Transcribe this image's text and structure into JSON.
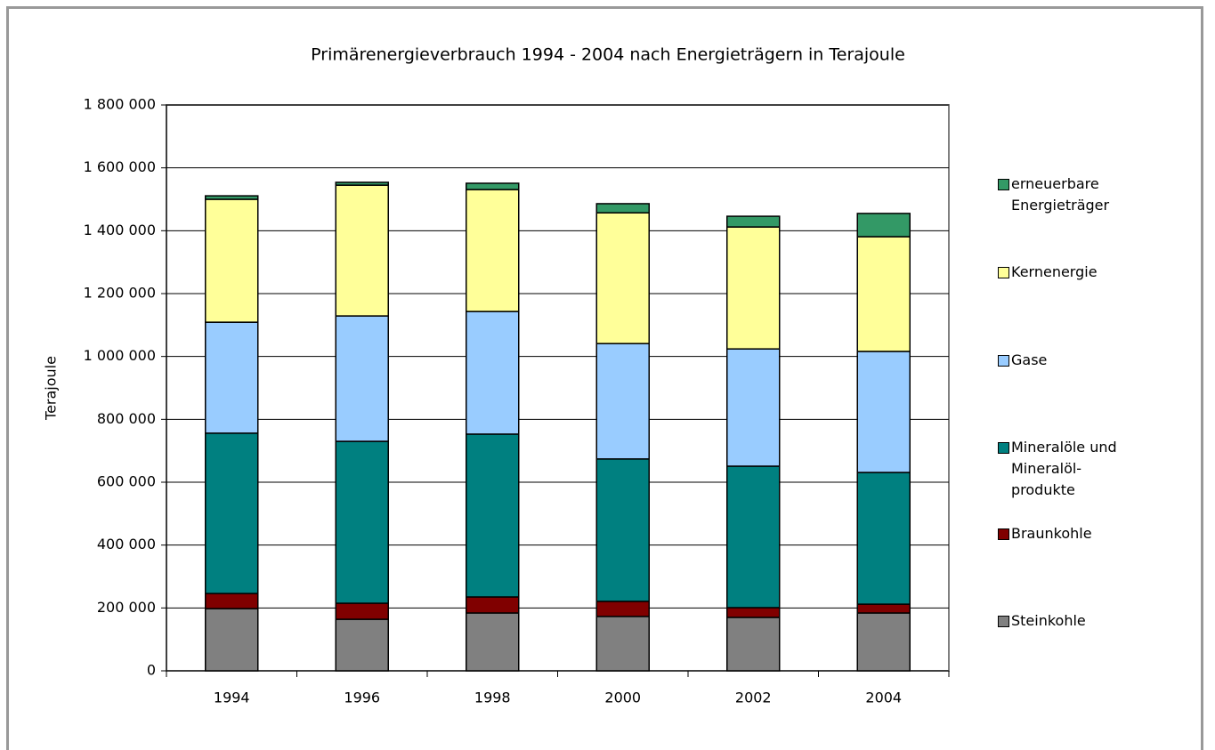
{
  "chart_data": {
    "type": "bar",
    "stacked": true,
    "title": "Primärenergieverbrauch 1994 - 2004 nach Energieträgern in Terajoule",
    "y_label": "Terajoule",
    "categories": [
      "1994",
      "1996",
      "1998",
      "2000",
      "2002",
      "2004"
    ],
    "series": [
      {
        "name": "Steinkohle",
        "color": "#808080",
        "values": [
          198000,
          164000,
          184000,
          173000,
          170000,
          184000
        ]
      },
      {
        "name": "Braunkohle",
        "color": "#800000",
        "values": [
          48000,
          51000,
          51000,
          48000,
          31000,
          28000
        ]
      },
      {
        "name": "Mineralöle und Mineralöl-produkte",
        "color": "#008080",
        "values": [
          510000,
          515000,
          518000,
          453000,
          450000,
          419000
        ]
      },
      {
        "name": "Gase",
        "color": "#99ccff",
        "values": [
          353000,
          399000,
          390000,
          367000,
          373000,
          385000
        ]
      },
      {
        "name": "Kernenergie",
        "color": "#ffff99",
        "values": [
          391000,
          416000,
          388000,
          416000,
          388000,
          365000
        ]
      },
      {
        "name": "erneuerbare Energieträger",
        "color": "#339966",
        "values": [
          11000,
          9000,
          20000,
          29000,
          34000,
          74000
        ]
      }
    ],
    "ylim": [
      0,
      1800000
    ],
    "yticks": [
      0,
      {
        "value": 200000,
        "label": "200 000"
      },
      {
        "value": 400000,
        "label": "400 000"
      },
      {
        "value": 600000,
        "label": "600 000"
      },
      {
        "value": 800000,
        "label": "800 000"
      },
      {
        "value": 1000000,
        "label": "1 000 000"
      },
      {
        "value": 1200000,
        "label": "1 200 000"
      },
      {
        "value": 1400000,
        "label": "1 400 000"
      },
      {
        "value": 1600000,
        "label": "1 600 000"
      },
      {
        "value": 1800000,
        "label": "1 800 000"
      }
    ],
    "grid": true,
    "legend": "right"
  }
}
